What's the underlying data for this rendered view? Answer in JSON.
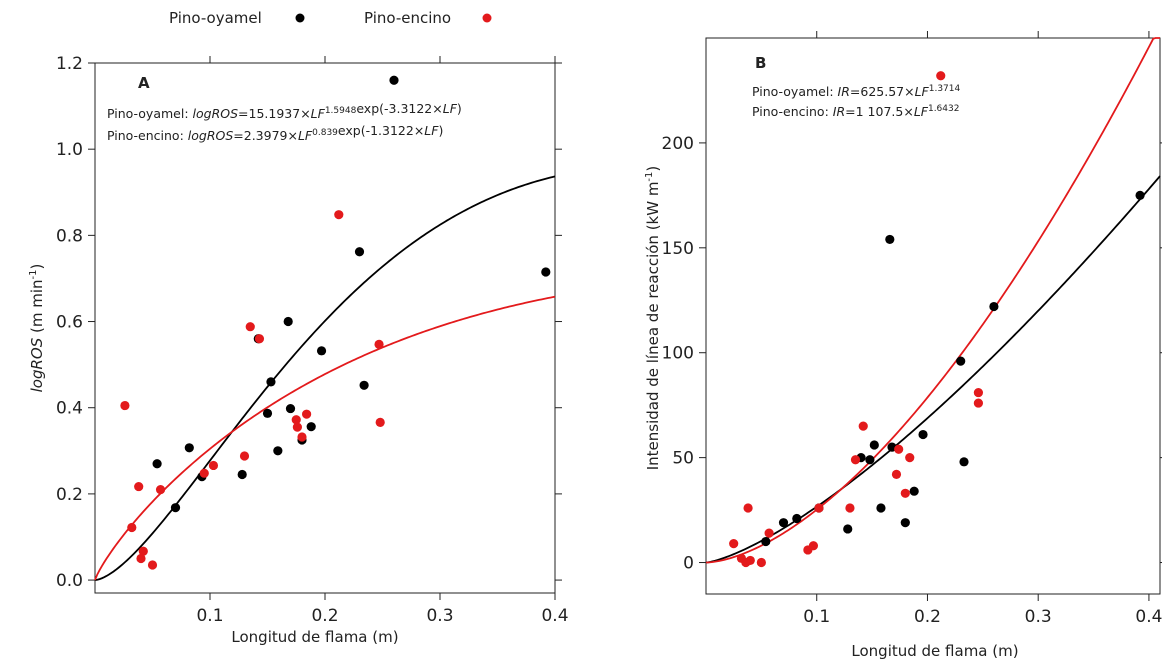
{
  "legend": {
    "items": [
      {
        "label": "Pino-oyamel",
        "color": "#000000"
      },
      {
        "label": "Pino-encino",
        "color": "#e31a1c"
      }
    ]
  },
  "chart_data": [
    {
      "panel": "A",
      "type": "scatter",
      "xlabel": "Longitud de flama (m)",
      "ylabel": {
        "italic": "logROS",
        "rest": " (m min",
        "sup": "-1",
        "end": ")"
      },
      "xlim": [
        0,
        0.4
      ],
      "ylim": [
        -0.03,
        1.2
      ],
      "xticks": [
        0.1,
        0.2,
        0.3,
        0.4
      ],
      "xtick_labels": [
        "0.1",
        "0.2",
        "0.3",
        "0.4"
      ],
      "yticks": [
        0.0,
        0.2,
        0.4,
        0.6,
        0.8,
        1.0,
        1.2
      ],
      "ytick_labels": [
        "0.0",
        "0.2",
        "0.4",
        "0.6",
        "0.8",
        "1.0",
        "1.2"
      ],
      "equations": [
        {
          "prefix": "Pino-oyamel: ",
          "parts": [
            [
              "i",
              "logROS"
            ],
            [
              "n",
              "=15.1937×"
            ],
            [
              "i",
              "LF"
            ],
            [
              "s",
              "1.5948"
            ],
            [
              "n",
              "exp(-3.3122×"
            ],
            [
              "i",
              "LF"
            ],
            [
              "n",
              ")"
            ]
          ]
        },
        {
          "prefix": "Pino-encino: ",
          "parts": [
            [
              "i",
              "logROS"
            ],
            [
              "n",
              "=2.3979×"
            ],
            [
              "i",
              "LF"
            ],
            [
              "s",
              "0.839"
            ],
            [
              "n",
              "exp(-1.3122×"
            ],
            [
              "i",
              "LF"
            ],
            [
              "n",
              ")"
            ]
          ]
        }
      ],
      "series": [
        {
          "name": "Pino-oyamel",
          "color": "#000000",
          "points": [
            [
              0.054,
              0.27
            ],
            [
              0.07,
              0.168
            ],
            [
              0.082,
              0.307
            ],
            [
              0.093,
              0.24
            ],
            [
              0.128,
              0.245
            ],
            [
              0.142,
              0.56
            ],
            [
              0.15,
              0.387
            ],
            [
              0.153,
              0.46
            ],
            [
              0.159,
              0.3
            ],
            [
              0.168,
              0.6
            ],
            [
              0.17,
              0.398
            ],
            [
              0.18,
              0.325
            ],
            [
              0.188,
              0.356
            ],
            [
              0.197,
              0.532
            ],
            [
              0.23,
              0.762
            ],
            [
              0.234,
              0.452
            ],
            [
              0.26,
              1.16
            ],
            [
              0.392,
              0.715
            ]
          ],
          "curve": {
            "a": 15.1937,
            "b": 1.5948,
            "c": -3.3122
          }
        },
        {
          "name": "Pino-encino",
          "color": "#e31a1c",
          "points": [
            [
              0.026,
              0.405
            ],
            [
              0.032,
              0.122
            ],
            [
              0.038,
              0.217
            ],
            [
              0.04,
              0.05
            ],
            [
              0.042,
              0.067
            ],
            [
              0.05,
              0.035
            ],
            [
              0.057,
              0.21
            ],
            [
              0.095,
              0.248
            ],
            [
              0.103,
              0.266
            ],
            [
              0.13,
              0.288
            ],
            [
              0.135,
              0.588
            ],
            [
              0.143,
              0.56
            ],
            [
              0.175,
              0.372
            ],
            [
              0.176,
              0.355
            ],
            [
              0.18,
              0.332
            ],
            [
              0.184,
              0.385
            ],
            [
              0.212,
              0.848
            ],
            [
              0.247,
              0.547
            ],
            [
              0.248,
              0.366
            ]
          ],
          "curve": {
            "a": 2.3979,
            "b": 0.839,
            "c": -1.3122
          }
        }
      ]
    },
    {
      "panel": "B",
      "type": "scatter",
      "xlabel": "Longitud de flama (m)",
      "ylabel": {
        "italic": "",
        "rest": "Intensidad de línea de reacción (kW m",
        "sup": "-1",
        "end": ")"
      },
      "xlim": [
        0,
        0.41
      ],
      "ylim": [
        -15,
        250
      ],
      "xticks": [
        0.1,
        0.2,
        0.3,
        0.4
      ],
      "xtick_labels": [
        "0.1",
        "0.2",
        "0.3",
        "0.4"
      ],
      "yticks": [
        0,
        50,
        100,
        150,
        200
      ],
      "ytick_labels": [
        "0",
        "50",
        "100",
        "150",
        "200"
      ],
      "equations": [
        {
          "prefix": "Pino-oyamel: ",
          "parts": [
            [
              "i",
              "IR"
            ],
            [
              "n",
              "=625.57×"
            ],
            [
              "i",
              "LF"
            ],
            [
              "s",
              "1.3714"
            ]
          ]
        },
        {
          "prefix": "Pino-encino: ",
          "parts": [
            [
              "i",
              "IR"
            ],
            [
              "n",
              "=1 107.5×"
            ],
            [
              "i",
              "LF"
            ],
            [
              "s",
              "1.6432"
            ]
          ]
        }
      ],
      "series": [
        {
          "name": "Pino-oyamel",
          "color": "#000000",
          "points": [
            [
              0.054,
              10
            ],
            [
              0.07,
              19
            ],
            [
              0.082,
              21
            ],
            [
              0.102,
              26
            ],
            [
              0.128,
              16
            ],
            [
              0.14,
              50
            ],
            [
              0.148,
              49
            ],
            [
              0.152,
              56
            ],
            [
              0.158,
              26
            ],
            [
              0.166,
              154
            ],
            [
              0.168,
              55
            ],
            [
              0.18,
              19
            ],
            [
              0.188,
              34
            ],
            [
              0.196,
              61
            ],
            [
              0.23,
              96
            ],
            [
              0.233,
              48
            ],
            [
              0.26,
              122
            ],
            [
              0.392,
              175
            ]
          ],
          "curve": {
            "a": 625.57,
            "b": 1.3714,
            "c": 0
          }
        },
        {
          "name": "Pino-encino",
          "color": "#e31a1c",
          "points": [
            [
              0.025,
              9
            ],
            [
              0.032,
              2
            ],
            [
              0.036,
              0
            ],
            [
              0.038,
              26
            ],
            [
              0.04,
              1
            ],
            [
              0.05,
              0
            ],
            [
              0.057,
              14
            ],
            [
              0.092,
              6
            ],
            [
              0.097,
              8
            ],
            [
              0.102,
              26
            ],
            [
              0.13,
              26
            ],
            [
              0.135,
              49
            ],
            [
              0.142,
              65
            ],
            [
              0.172,
              42
            ],
            [
              0.174,
              54
            ],
            [
              0.18,
              33
            ],
            [
              0.184,
              50
            ],
            [
              0.212,
              232
            ],
            [
              0.246,
              81
            ],
            [
              0.246,
              76
            ]
          ],
          "curve": {
            "a": 1107.5,
            "b": 1.6432,
            "c": 0
          }
        }
      ]
    }
  ]
}
